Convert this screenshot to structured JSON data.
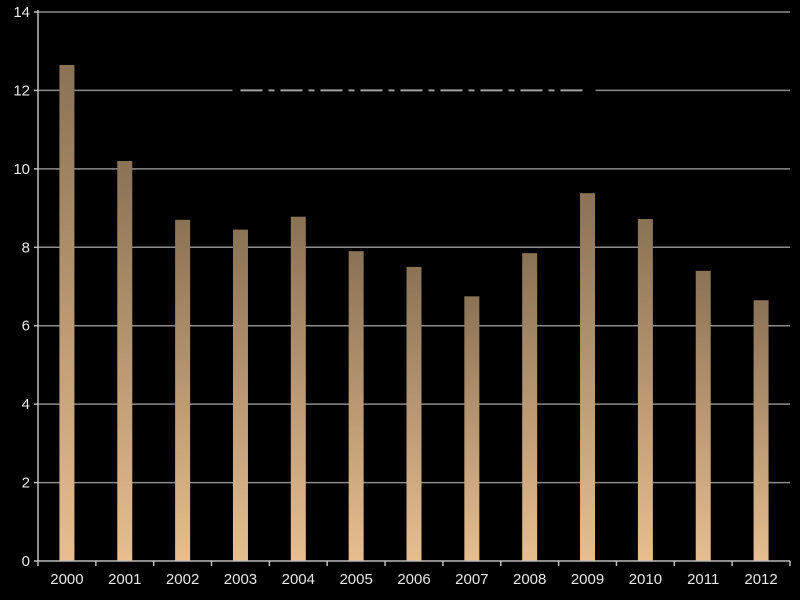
{
  "chart_data": {
    "type": "bar",
    "categories": [
      "2000",
      "2001",
      "2002",
      "2003",
      "2004",
      "2005",
      "2006",
      "2007",
      "2008",
      "2009",
      "2010",
      "2011",
      "2012"
    ],
    "values": [
      12.65,
      10.2,
      8.7,
      8.45,
      8.78,
      7.9,
      7.5,
      6.75,
      7.85,
      9.38,
      8.72,
      7.4,
      6.65
    ],
    "yticks": [
      0,
      2,
      4,
      6,
      8,
      10,
      12,
      14
    ],
    "ylim": [
      0,
      14
    ],
    "reference_line": {
      "value": 12,
      "from": "2003",
      "to": "2009",
      "style": "dashed"
    },
    "grid": true,
    "legend": "none",
    "colors": {
      "background": "#000000",
      "bar_top": "#8a7255",
      "bar_bottom": "#e8be90",
      "grid": "#8c8c8c",
      "axis": "#bdbdbd",
      "text": "#e8e8e8",
      "reference_line": "#a0a0a0"
    }
  }
}
